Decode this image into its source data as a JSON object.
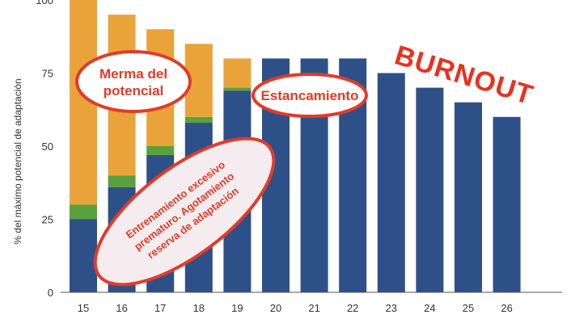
{
  "chart_data": {
    "type": "bar",
    "stacked": true,
    "categories": [
      "15",
      "16",
      "17",
      "18",
      "19",
      "20",
      "21",
      "22",
      "23",
      "24",
      "25",
      "26"
    ],
    "series": [
      {
        "values": [
          25,
          36,
          47,
          58,
          69,
          80,
          80,
          80,
          75,
          70,
          65,
          60
        ],
        "color": "#2e5088"
      },
      {
        "values": [
          5,
          4,
          3,
          2,
          1,
          0,
          0,
          0,
          0,
          0,
          0,
          0
        ],
        "color": "#5aa03c"
      },
      {
        "values": [
          70,
          55,
          40,
          25,
          10,
          0,
          0,
          0,
          0,
          0,
          0,
          0
        ],
        "color": "#eaa33a"
      }
    ],
    "ylabel": "% del máximo potencial de adaptación",
    "ylim": [
      0,
      100
    ],
    "yticks": [
      0,
      25,
      50,
      75,
      100
    ],
    "grid": false,
    "annotations": {
      "merma": "Merma del potencial",
      "merma_line1": "Merma del",
      "merma_line2": "potencial",
      "estancamiento": "Estancamiento",
      "entrenamiento": "Entrenamiento excesivo prematuro. Agotamiento reserva de adaptación",
      "entrenamiento_line1": "Entrenamiento excesivo",
      "entrenamiento_line2": "prematuro. Agotamiento",
      "entrenamiento_line3": "reserva de adaptación",
      "burnout": "BURNOUT"
    },
    "colors": {
      "annotation": "#e23b2a",
      "axis": "#555555"
    }
  }
}
